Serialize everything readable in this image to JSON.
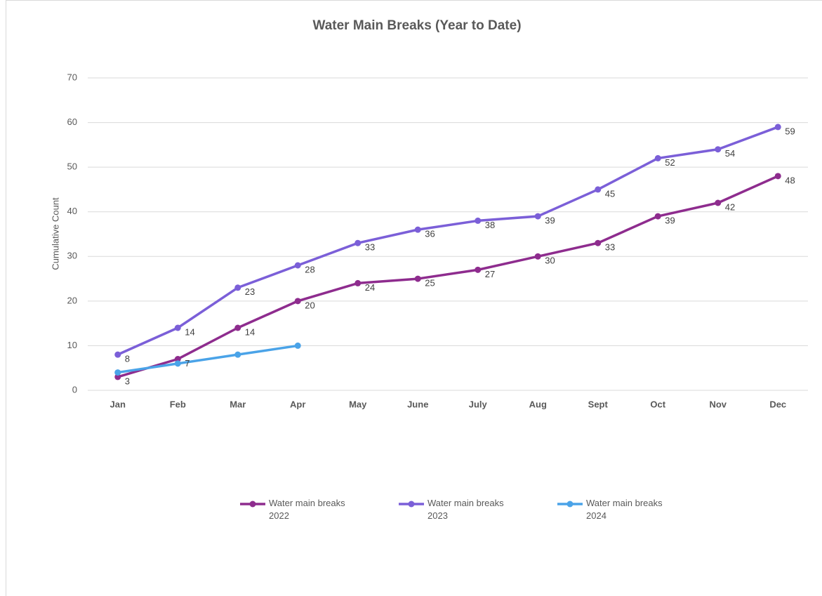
{
  "chart_data": {
    "type": "line",
    "title": "Water Main Breaks (Year to Date)",
    "y_label": "Cumulative Count",
    "categories": [
      "Jan",
      "Feb",
      "Mar",
      "Apr",
      "May",
      "June",
      "July",
      "Aug",
      "Sept",
      "Oct",
      "Nov",
      "Dec"
    ],
    "series": [
      {
        "name": "Water main breaks 2022",
        "color": "#8e2c8e",
        "show_labels": true,
        "values": [
          3,
          7,
          14,
          20,
          24,
          25,
          27,
          30,
          33,
          39,
          42,
          48
        ]
      },
      {
        "name": "Water main breaks 2023",
        "color": "#7b5fd8",
        "show_labels": true,
        "values": [
          8,
          14,
          23,
          28,
          33,
          36,
          38,
          39,
          45,
          52,
          54,
          59
        ]
      },
      {
        "name": "Water main breaks 2024",
        "color": "#4aa3e8",
        "show_labels": false,
        "values": [
          4,
          6,
          8,
          10,
          null,
          null,
          null,
          null,
          null,
          null,
          null,
          null
        ]
      }
    ],
    "ylim": [
      0,
      70
    ],
    "yticks": [
      0,
      10,
      20,
      30,
      40,
      50,
      60,
      70
    ],
    "grid": true,
    "legend": "bottom"
  }
}
